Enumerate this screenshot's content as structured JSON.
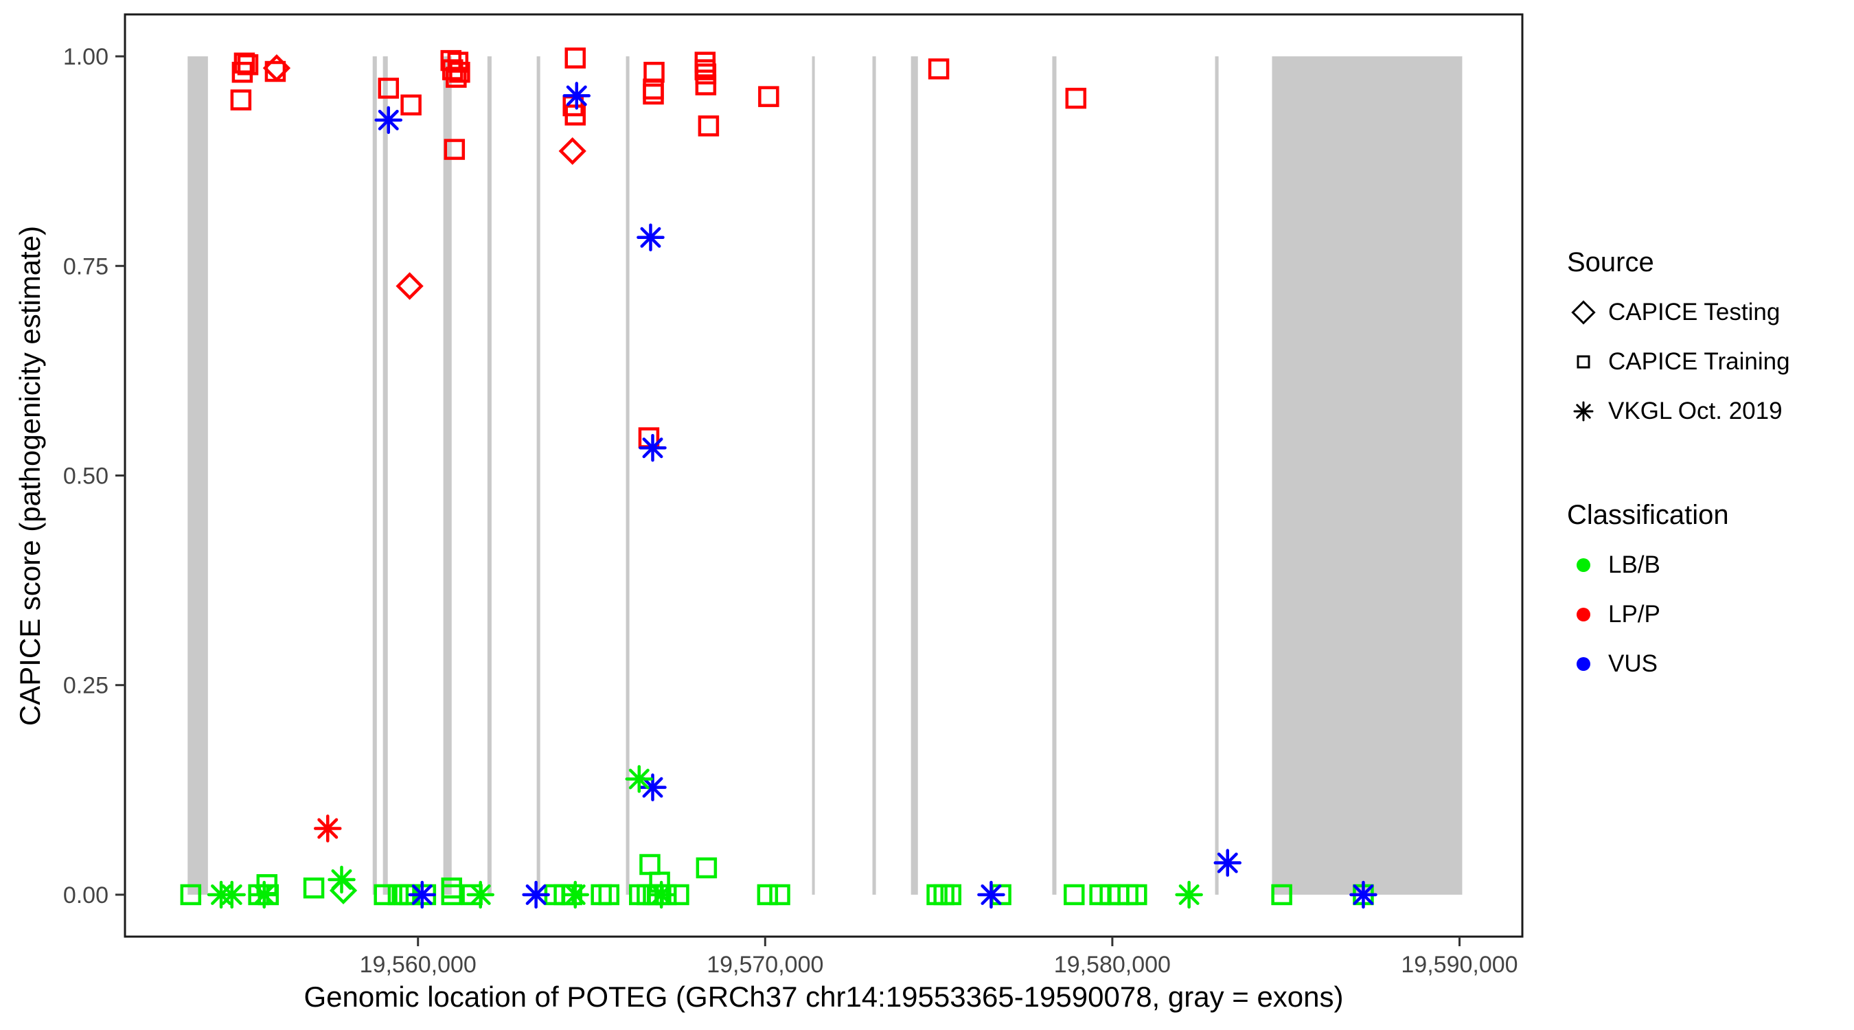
{
  "figure": {
    "x_axis_title": "Genomic location of POTEG (GRCh37 chr14:19553365-19590078, gray = exons)",
    "y_axis_title": "CAPICE score (pathogenicity estimate)"
  },
  "legend": {
    "source": {
      "title": "Source",
      "items": [
        {
          "label": "CAPICE Testing",
          "shape": "diamond"
        },
        {
          "label": "CAPICE Training",
          "shape": "square"
        },
        {
          "label": "VKGL Oct. 2019",
          "shape": "asterisk"
        }
      ]
    },
    "classification": {
      "title": "Classification",
      "items": [
        {
          "label": "LB/B",
          "color": "#00EE00"
        },
        {
          "label": "LP/P",
          "color": "#FF0000"
        },
        {
          "label": "VUS",
          "color": "#0000FF"
        }
      ]
    }
  },
  "chart_data": {
    "type": "scatter",
    "title": "",
    "xlabel": "Genomic location of POTEG (GRCh37 chr14:19553365-19590078, gray = exons)",
    "ylabel": "CAPICE score (pathogenicity estimate)",
    "xlim": [
      19551560,
      19591810
    ],
    "ylim": [
      -0.05,
      1.05
    ],
    "grid": "off",
    "legend_position": "right",
    "x_ticks": [
      19560000,
      19570000,
      19580000,
      19590000
    ],
    "x_tick_labels": [
      "19,560,000",
      "19,570,000",
      "19,580,000",
      "19,590,000"
    ],
    "y_ticks": [
      0.0,
      0.25,
      0.5,
      0.75,
      1.0
    ],
    "y_tick_labels": [
      "0.00",
      "0.25",
      "0.50",
      "0.75",
      "1.00"
    ],
    "exon_color": "#C9C9C9",
    "exons": [
      [
        19553365,
        19553950
      ],
      [
        19558695,
        19558815
      ],
      [
        19558990,
        19559130
      ],
      [
        19560730,
        19560970
      ],
      [
        19562000,
        19562120
      ],
      [
        19563420,
        19563520
      ],
      [
        19565990,
        19566090
      ],
      [
        19571350,
        19571430
      ],
      [
        19573090,
        19573190
      ],
      [
        19574200,
        19574400
      ],
      [
        19578270,
        19578390
      ],
      [
        19582960,
        19583060
      ],
      [
        19584600,
        19590078
      ]
    ],
    "classification_colors": {
      "LB/B": "#00EE00",
      "LP/P": "#FF0000",
      "VUS": "#0000FF"
    },
    "series": [
      {
        "name": "CAPICE Training",
        "shape": "square",
        "points": [
          {
            "x": 19554900,
            "y": 0.948,
            "c": "LP/P"
          },
          {
            "x": 19554940,
            "y": 0.981,
            "c": "LP/P"
          },
          {
            "x": 19555000,
            "y": 0.992,
            "c": "LP/P"
          },
          {
            "x": 19555100,
            "y": 0.99,
            "c": "LP/P"
          },
          {
            "x": 19555890,
            "y": 0.982,
            "c": "LP/P"
          },
          {
            "x": 19559150,
            "y": 0.962,
            "c": "LP/P"
          },
          {
            "x": 19559800,
            "y": 0.942,
            "c": "LP/P"
          },
          {
            "x": 19560950,
            "y": 0.995,
            "c": "LP/P"
          },
          {
            "x": 19561150,
            "y": 0.993,
            "c": "LP/P"
          },
          {
            "x": 19561000,
            "y": 0.984,
            "c": "LP/P"
          },
          {
            "x": 19561200,
            "y": 0.981,
            "c": "LP/P"
          },
          {
            "x": 19561100,
            "y": 0.975,
            "c": "LP/P"
          },
          {
            "x": 19561050,
            "y": 0.889,
            "c": "LP/P"
          },
          {
            "x": 19564530,
            "y": 0.998,
            "c": "LP/P"
          },
          {
            "x": 19564470,
            "y": 0.941,
            "c": "LP/P"
          },
          {
            "x": 19564530,
            "y": 0.93,
            "c": "LP/P"
          },
          {
            "x": 19566800,
            "y": 0.981,
            "c": "LP/P"
          },
          {
            "x": 19566780,
            "y": 0.961,
            "c": "LP/P"
          },
          {
            "x": 19566780,
            "y": 0.955,
            "c": "LP/P"
          },
          {
            "x": 19566650,
            "y": 0.545,
            "c": "LP/P"
          },
          {
            "x": 19568270,
            "y": 0.993,
            "c": "LP/P"
          },
          {
            "x": 19568270,
            "y": 0.984,
            "c": "LP/P"
          },
          {
            "x": 19568290,
            "y": 0.979,
            "c": "LP/P"
          },
          {
            "x": 19568290,
            "y": 0.966,
            "c": "LP/P"
          },
          {
            "x": 19568370,
            "y": 0.917,
            "c": "LP/P"
          },
          {
            "x": 19570100,
            "y": 0.952,
            "c": "LP/P"
          },
          {
            "x": 19575000,
            "y": 0.985,
            "c": "LP/P"
          },
          {
            "x": 19578950,
            "y": 0.95,
            "c": "LP/P"
          },
          {
            "x": 19553455,
            "y": 0.0,
            "c": "LB/B"
          },
          {
            "x": 19555410,
            "y": 0.0,
            "c": "LB/B"
          },
          {
            "x": 19555690,
            "y": 0.0,
            "c": "LB/B"
          },
          {
            "x": 19555650,
            "y": 0.012,
            "c": "LB/B"
          },
          {
            "x": 19557000,
            "y": 0.008,
            "c": "LB/B"
          },
          {
            "x": 19559030,
            "y": 0.0,
            "c": "LB/B"
          },
          {
            "x": 19559430,
            "y": 0.0,
            "c": "LB/B"
          },
          {
            "x": 19559620,
            "y": 0.0,
            "c": "LB/B"
          },
          {
            "x": 19559760,
            "y": 0.0,
            "c": "LB/B"
          },
          {
            "x": 19560220,
            "y": 0.0,
            "c": "LB/B"
          },
          {
            "x": 19560970,
            "y": 0.008,
            "c": "LB/B"
          },
          {
            "x": 19560970,
            "y": 0.0,
            "c": "LB/B"
          },
          {
            "x": 19561560,
            "y": 0.0,
            "c": "LB/B"
          },
          {
            "x": 19563940,
            "y": 0.0,
            "c": "LB/B"
          },
          {
            "x": 19564210,
            "y": 0.0,
            "c": "LB/B"
          },
          {
            "x": 19564430,
            "y": 0.0,
            "c": "LB/B"
          },
          {
            "x": 19565280,
            "y": 0.0,
            "c": "LB/B"
          },
          {
            "x": 19565500,
            "y": 0.0,
            "c": "LB/B"
          },
          {
            "x": 19566380,
            "y": 0.0,
            "c": "LB/B"
          },
          {
            "x": 19566600,
            "y": 0.0,
            "c": "LB/B"
          },
          {
            "x": 19566780,
            "y": 0.0,
            "c": "LB/B"
          },
          {
            "x": 19566920,
            "y": 0.0,
            "c": "LB/B"
          },
          {
            "x": 19567150,
            "y": 0.0,
            "c": "LB/B"
          },
          {
            "x": 19567510,
            "y": 0.0,
            "c": "LB/B"
          },
          {
            "x": 19566680,
            "y": 0.036,
            "c": "LB/B"
          },
          {
            "x": 19566960,
            "y": 0.015,
            "c": "LB/B"
          },
          {
            "x": 19568310,
            "y": 0.032,
            "c": "LB/B"
          },
          {
            "x": 19570070,
            "y": 0.0,
            "c": "LB/B"
          },
          {
            "x": 19570420,
            "y": 0.0,
            "c": "LB/B"
          },
          {
            "x": 19574950,
            "y": 0.0,
            "c": "LB/B"
          },
          {
            "x": 19575150,
            "y": 0.0,
            "c": "LB/B"
          },
          {
            "x": 19575350,
            "y": 0.0,
            "c": "LB/B"
          },
          {
            "x": 19576790,
            "y": 0.0,
            "c": "LB/B"
          },
          {
            "x": 19578900,
            "y": 0.0,
            "c": "LB/B"
          },
          {
            "x": 19579640,
            "y": 0.0,
            "c": "LB/B"
          },
          {
            "x": 19579935,
            "y": 0.0,
            "c": "LB/B"
          },
          {
            "x": 19580190,
            "y": 0.0,
            "c": "LB/B"
          },
          {
            "x": 19580450,
            "y": 0.0,
            "c": "LB/B"
          },
          {
            "x": 19580700,
            "y": 0.0,
            "c": "LB/B"
          },
          {
            "x": 19584880,
            "y": 0.0,
            "c": "LB/B"
          },
          {
            "x": 19587230,
            "y": 0.0,
            "c": "LB/B"
          }
        ]
      },
      {
        "name": "CAPICE Testing",
        "shape": "diamond",
        "points": [
          {
            "x": 19555930,
            "y": 0.986,
            "c": "LP/P"
          },
          {
            "x": 19559760,
            "y": 0.726,
            "c": "LP/P"
          },
          {
            "x": 19564450,
            "y": 0.887,
            "c": "LP/P"
          },
          {
            "x": 19557850,
            "y": 0.005,
            "c": "LB/B"
          }
        ]
      },
      {
        "name": "VKGL Oct. 2019",
        "shape": "asterisk",
        "points": [
          {
            "x": 19557400,
            "y": 0.079,
            "c": "LP/P"
          },
          {
            "x": 19559150,
            "y": 0.924,
            "c": "VUS"
          },
          {
            "x": 19564570,
            "y": 0.953,
            "c": "VUS"
          },
          {
            "x": 19566700,
            "y": 0.784,
            "c": "VUS"
          },
          {
            "x": 19566760,
            "y": 0.533,
            "c": "VUS"
          },
          {
            "x": 19566760,
            "y": 0.128,
            "c": "VUS"
          },
          {
            "x": 19560120,
            "y": 0.0,
            "c": "VUS"
          },
          {
            "x": 19563400,
            "y": 0.0,
            "c": "VUS"
          },
          {
            "x": 19576510,
            "y": 0.0,
            "c": "VUS"
          },
          {
            "x": 19583320,
            "y": 0.038,
            "c": "VUS"
          },
          {
            "x": 19587230,
            "y": 0.0,
            "c": "VUS"
          },
          {
            "x": 19554330,
            "y": 0.0,
            "c": "LB/B"
          },
          {
            "x": 19554640,
            "y": 0.0,
            "c": "LB/B"
          },
          {
            "x": 19555570,
            "y": 0.0,
            "c": "LB/B"
          },
          {
            "x": 19557800,
            "y": 0.018,
            "c": "LB/B"
          },
          {
            "x": 19561800,
            "y": 0.0,
            "c": "LB/B"
          },
          {
            "x": 19564530,
            "y": 0.0,
            "c": "LB/B"
          },
          {
            "x": 19566370,
            "y": 0.138,
            "c": "LB/B"
          },
          {
            "x": 19567010,
            "y": 0.0,
            "c": "LB/B"
          },
          {
            "x": 19582210,
            "y": 0.0,
            "c": "LB/B"
          }
        ]
      }
    ]
  }
}
